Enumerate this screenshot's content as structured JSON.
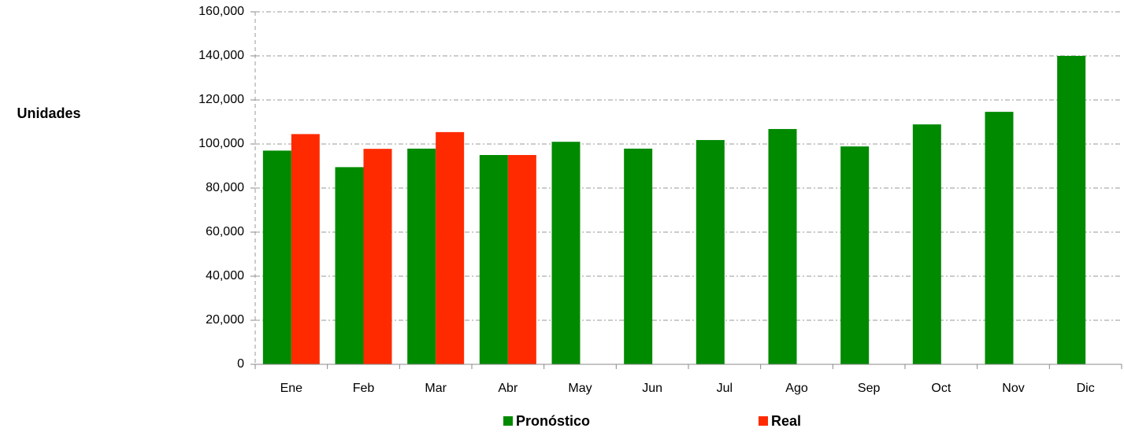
{
  "chart_data": {
    "type": "bar",
    "y_label": "Unidades",
    "categories": [
      "Ene",
      "Feb",
      "Mar",
      "Abr",
      "May",
      "Jun",
      "Jul",
      "Ago",
      "Sep",
      "Oct",
      "Nov",
      "Dic"
    ],
    "series": [
      {
        "name": "Pronóstico",
        "color": "#008a00",
        "values": [
          97000,
          89500,
          97900,
          95000,
          101000,
          97900,
          101800,
          106800,
          98900,
          108900,
          114600,
          140000
        ]
      },
      {
        "name": "Real",
        "color": "#ff2a00",
        "values": [
          104500,
          97800,
          105400,
          95000,
          null,
          null,
          null,
          null,
          null,
          null,
          null,
          null
        ]
      }
    ],
    "ylim": [
      0,
      160000
    ],
    "yticks": [
      0,
      {
        "value": 20000,
        "label": "20,000"
      },
      {
        "value": 40000,
        "label": "40,000"
      },
      {
        "value": 60000,
        "label": "60,000"
      },
      {
        "value": 80000,
        "label": "80,000"
      },
      {
        "value": 100000,
        "label": "100,000"
      },
      {
        "value": 120000,
        "label": "120,000"
      },
      {
        "value": 140000,
        "label": "140,000"
      },
      {
        "value": 160000,
        "label": "160,000"
      }
    ],
    "grid": true
  }
}
